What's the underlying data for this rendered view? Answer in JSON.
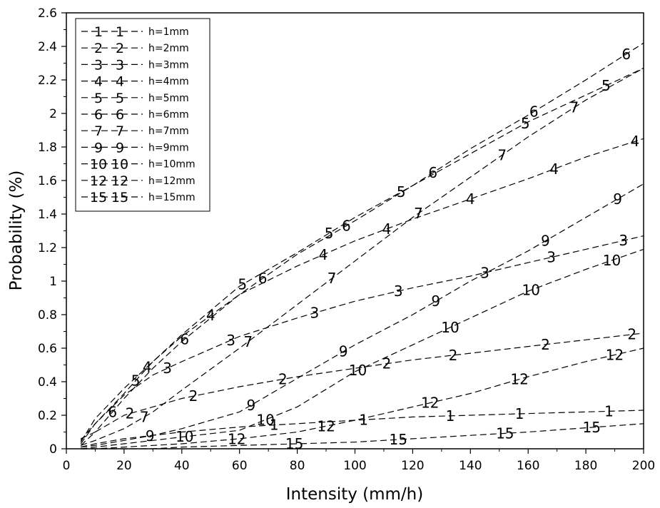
{
  "chart_data": {
    "type": "line",
    "title": "",
    "xlabel": "Intensity (mm/h)",
    "ylabel": "Probability (%)",
    "xlim": [
      0,
      200
    ],
    "ylim": [
      0,
      2.6
    ],
    "x_ticks": [
      "0",
      "20",
      "40",
      "60",
      "80",
      "100",
      "120",
      "140",
      "160",
      "180",
      "200"
    ],
    "y_ticks": [
      "0",
      "0.2",
      "0.4",
      "0.6",
      "0.8",
      "1",
      "1.2",
      "1.4",
      "1.6",
      "1.8",
      "2",
      "2.2",
      "2.4",
      "2.6"
    ],
    "grid": false,
    "legend_position": "top-left",
    "line_style": "dashed",
    "line_color": "#000000",
    "series": [
      {
        "name": "h=1mm",
        "marker": "1",
        "x": [
          5,
          10,
          20,
          30,
          40,
          60,
          80,
          100,
          120,
          140,
          160,
          180,
          200
        ],
        "y": [
          0.01,
          0.03,
          0.06,
          0.08,
          0.1,
          0.13,
          0.15,
          0.17,
          0.19,
          0.2,
          0.21,
          0.22,
          0.23
        ],
        "marker_x": [
          72,
          103,
          133,
          157,
          188
        ]
      },
      {
        "name": "h=2mm",
        "marker": "2",
        "x": [
          5,
          10,
          20,
          30,
          40,
          60,
          80,
          100,
          120,
          140,
          160,
          180,
          200
        ],
        "y": [
          0.02,
          0.1,
          0.2,
          0.25,
          0.3,
          0.37,
          0.43,
          0.48,
          0.53,
          0.57,
          0.61,
          0.65,
          0.69
        ],
        "marker_x": [
          22,
          44,
          75,
          111,
          134,
          166,
          196
        ]
      },
      {
        "name": "h=3mm",
        "marker": "3",
        "x": [
          5,
          10,
          20,
          30,
          40,
          60,
          80,
          100,
          120,
          140,
          160,
          180,
          200
        ],
        "y": [
          0.03,
          0.15,
          0.32,
          0.44,
          0.52,
          0.67,
          0.78,
          0.88,
          0.96,
          1.03,
          1.11,
          1.19,
          1.27
        ],
        "marker_x": [
          35,
          57,
          86,
          115,
          145,
          168,
          193
        ]
      },
      {
        "name": "h=4mm",
        "marker": "4",
        "x": [
          5,
          10,
          20,
          30,
          40,
          60,
          80,
          100,
          120,
          140,
          160,
          180,
          200
        ],
        "y": [
          0.04,
          0.18,
          0.36,
          0.52,
          0.67,
          0.92,
          1.09,
          1.24,
          1.37,
          1.49,
          1.61,
          1.74,
          1.85
        ],
        "marker_x": [
          28,
          50,
          89,
          111,
          140,
          169,
          197
        ]
      },
      {
        "name": "h=5mm",
        "marker": "5",
        "x": [
          5,
          10,
          20,
          30,
          40,
          60,
          80,
          100,
          120,
          140,
          160,
          180,
          200
        ],
        "y": [
          0.05,
          0.15,
          0.33,
          0.52,
          0.68,
          0.97,
          1.17,
          1.38,
          1.57,
          1.76,
          1.95,
          2.11,
          2.27
        ],
        "marker_x": [
          24,
          61,
          91,
          116,
          159,
          187
        ]
      },
      {
        "name": "h=6mm",
        "marker": "6",
        "x": [
          5,
          10,
          20,
          30,
          40,
          60,
          80,
          100,
          120,
          140,
          160,
          180,
          200
        ],
        "y": [
          0.06,
          0.1,
          0.3,
          0.48,
          0.64,
          0.92,
          1.16,
          1.36,
          1.57,
          1.79,
          1.99,
          2.2,
          2.42
        ],
        "marker_x": [
          16,
          41,
          68,
          97,
          127,
          162,
          194
        ]
      },
      {
        "name": "h=7mm",
        "marker": "7",
        "x": [
          5,
          10,
          20,
          30,
          40,
          60,
          80,
          100,
          120,
          140,
          160,
          180,
          200
        ],
        "y": [
          0.02,
          0.05,
          0.12,
          0.22,
          0.35,
          0.6,
          0.86,
          1.12,
          1.38,
          1.62,
          1.86,
          2.08,
          2.27
        ],
        "marker_x": [
          27,
          63,
          92,
          122,
          151,
          176
        ]
      },
      {
        "name": "h=9mm",
        "marker": "9",
        "x": [
          5,
          10,
          20,
          30,
          40,
          60,
          80,
          100,
          120,
          140,
          160,
          180,
          200
        ],
        "y": [
          0.01,
          0.02,
          0.05,
          0.08,
          0.12,
          0.22,
          0.42,
          0.62,
          0.8,
          1.0,
          1.18,
          1.38,
          1.58
        ],
        "marker_x": [
          29,
          64,
          96,
          128,
          166,
          191
        ]
      },
      {
        "name": "h=10mm",
        "marker": "10",
        "x": [
          5,
          10,
          20,
          30,
          40,
          60,
          80,
          100,
          120,
          140,
          160,
          180,
          200
        ],
        "y": [
          0.0,
          0.01,
          0.03,
          0.05,
          0.07,
          0.11,
          0.25,
          0.46,
          0.62,
          0.78,
          0.94,
          1.07,
          1.19
        ],
        "marker_x": [
          41,
          69,
          101,
          133,
          161,
          189
        ]
      },
      {
        "name": "h=12mm",
        "marker": "12",
        "x": [
          5,
          10,
          20,
          30,
          40,
          60,
          80,
          100,
          120,
          140,
          160,
          180,
          200
        ],
        "y": [
          0.0,
          0.0,
          0.01,
          0.02,
          0.03,
          0.06,
          0.1,
          0.17,
          0.25,
          0.33,
          0.43,
          0.52,
          0.6
        ],
        "marker_x": [
          59,
          90,
          126,
          157,
          190
        ]
      },
      {
        "name": "h=15mm",
        "marker": "15",
        "x": [
          5,
          10,
          20,
          30,
          40,
          60,
          80,
          100,
          120,
          140,
          160,
          180,
          200
        ],
        "y": [
          0.0,
          0.0,
          0.0,
          0.0,
          0.01,
          0.02,
          0.03,
          0.04,
          0.06,
          0.08,
          0.1,
          0.125,
          0.15
        ],
        "marker_x": [
          79,
          115,
          152,
          182
        ]
      }
    ]
  }
}
